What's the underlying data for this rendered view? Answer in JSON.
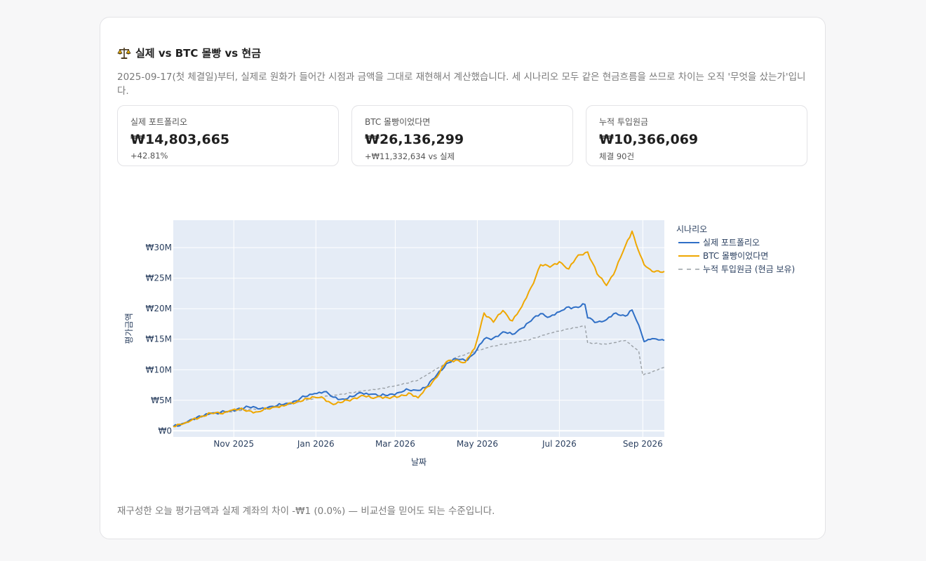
{
  "header": {
    "title": "실제 vs BTC 몰빵 vs 현금",
    "icon": "balance-scale-icon",
    "description": "2025-09-17(첫 체결일)부터, 실제로 원화가 들어간 시점과 금액을 그대로 재현해서 계산했습니다. 세 시나리오 모두 같은 현금흐름을 쓰므로 차이는 오직 '무엇을 샀는가'입니다."
  },
  "metrics": [
    {
      "label": "실제 포트폴리오",
      "value": "₩14,803,665",
      "sub": "+42.81%"
    },
    {
      "label": "BTC 몰빵이었다면",
      "value": "₩26,136,299",
      "sub": "+₩11,332,634 vs 실제"
    },
    {
      "label": "누적 투입원금",
      "value": "₩10,366,069",
      "sub": "체결 90건"
    }
  ],
  "footnote": "재구성한 오늘 평가금액과 실제 계좌의 차이 -₩1 (0.0%) — 비교선을 믿어도 되는 수준입니다.",
  "chart_data": {
    "type": "line",
    "xlabel": "날짜",
    "ylabel": "평가금액",
    "x_range": [
      "2025-09-17",
      "2026-09-17"
    ],
    "x_ticks": [
      {
        "date": "2025-11-01",
        "label": "Nov 2025"
      },
      {
        "date": "2026-01-01",
        "label": "Jan 2026"
      },
      {
        "date": "2026-03-01",
        "label": "Mar 2026"
      },
      {
        "date": "2026-05-01",
        "label": "May 2026"
      },
      {
        "date": "2026-07-01",
        "label": "Jul 2026"
      },
      {
        "date": "2026-09-01",
        "label": "Sep 2026"
      }
    ],
    "y_ticks": [
      {
        "value": 0,
        "label": "₩0"
      },
      {
        "value": 5000000,
        "label": "₩5M"
      },
      {
        "value": 10000000,
        "label": "₩10M"
      },
      {
        "value": 15000000,
        "label": "₩15M"
      },
      {
        "value": 20000000,
        "label": "₩20M"
      },
      {
        "value": 25000000,
        "label": "₩25M"
      },
      {
        "value": 30000000,
        "label": "₩30M"
      }
    ],
    "ylim": [
      -1000000,
      34500000
    ],
    "legend": {
      "title": "시나리오",
      "placement": "right"
    },
    "plot_bg": "#e5ecf6",
    "grid": true,
    "series": [
      {
        "name": "실제 포트폴리오",
        "color": "#2f6fc6",
        "dash": "solid",
        "points": [
          [
            "2025-09-17",
            700000
          ],
          [
            "2025-09-25",
            1200000
          ],
          [
            "2025-10-01",
            1900000
          ],
          [
            "2025-10-08",
            2300000
          ],
          [
            "2025-10-15",
            2900000
          ],
          [
            "2025-10-22",
            3000000
          ],
          [
            "2025-10-29",
            3200000
          ],
          [
            "2025-11-05",
            3700000
          ],
          [
            "2025-11-12",
            3900000
          ],
          [
            "2025-11-19",
            3600000
          ],
          [
            "2025-11-26",
            3800000
          ],
          [
            "2025-12-03",
            4100000
          ],
          [
            "2025-12-10",
            4500000
          ],
          [
            "2025-12-17",
            4900000
          ],
          [
            "2025-12-24",
            5600000
          ],
          [
            "2025-12-31",
            6100000
          ],
          [
            "2026-01-07",
            6400000
          ],
          [
            "2026-01-14",
            5500000
          ],
          [
            "2026-01-21",
            5200000
          ],
          [
            "2026-01-28",
            5600000
          ],
          [
            "2026-02-04",
            6200000
          ],
          [
            "2026-02-11",
            6000000
          ],
          [
            "2026-02-18",
            5700000
          ],
          [
            "2026-02-25",
            6000000
          ],
          [
            "2026-03-04",
            6300000
          ],
          [
            "2026-03-11",
            6700000
          ],
          [
            "2026-03-18",
            6600000
          ],
          [
            "2026-03-25",
            7300000
          ],
          [
            "2026-04-01",
            9200000
          ],
          [
            "2026-04-08",
            11000000
          ],
          [
            "2026-04-15",
            11800000
          ],
          [
            "2026-04-22",
            11500000
          ],
          [
            "2026-04-29",
            12700000
          ],
          [
            "2026-05-06",
            15000000
          ],
          [
            "2026-05-13",
            15200000
          ],
          [
            "2026-05-20",
            16200000
          ],
          [
            "2026-05-27",
            15800000
          ],
          [
            "2026-06-03",
            16800000
          ],
          [
            "2026-06-10",
            18000000
          ],
          [
            "2026-06-17",
            19200000
          ],
          [
            "2026-06-24",
            18700000
          ],
          [
            "2026-07-01",
            19500000
          ],
          [
            "2026-07-08",
            20300000
          ],
          [
            "2026-07-15",
            20200000
          ],
          [
            "2026-07-20",
            20700000
          ],
          [
            "2026-07-22",
            18500000
          ],
          [
            "2026-07-29",
            17800000
          ],
          [
            "2026-08-05",
            18200000
          ],
          [
            "2026-08-12",
            19300000
          ],
          [
            "2026-08-19",
            18800000
          ],
          [
            "2026-08-24",
            19800000
          ],
          [
            "2026-08-29",
            17300000
          ],
          [
            "2026-09-02",
            14600000
          ],
          [
            "2026-09-08",
            15100000
          ],
          [
            "2026-09-17",
            14800000
          ]
        ]
      },
      {
        "name": "BTC 몰빵이었다면",
        "color": "#efa700",
        "dash": "solid",
        "points": [
          [
            "2025-09-17",
            700000
          ],
          [
            "2025-09-25",
            1200000
          ],
          [
            "2025-10-01",
            1800000
          ],
          [
            "2025-10-08",
            2400000
          ],
          [
            "2025-10-15",
            2900000
          ],
          [
            "2025-10-22",
            2800000
          ],
          [
            "2025-10-29",
            3300000
          ],
          [
            "2025-11-05",
            3500000
          ],
          [
            "2025-11-12",
            3300000
          ],
          [
            "2025-11-19",
            3100000
          ],
          [
            "2025-11-26",
            3600000
          ],
          [
            "2025-12-03",
            3900000
          ],
          [
            "2025-12-10",
            4200000
          ],
          [
            "2025-12-17",
            4600000
          ],
          [
            "2025-12-24",
            5300000
          ],
          [
            "2025-12-31",
            5500000
          ],
          [
            "2026-01-07",
            5300000
          ],
          [
            "2026-01-14",
            4300000
          ],
          [
            "2026-01-21",
            4700000
          ],
          [
            "2026-01-28",
            5200000
          ],
          [
            "2026-02-04",
            5800000
          ],
          [
            "2026-02-11",
            5400000
          ],
          [
            "2026-02-18",
            5600000
          ],
          [
            "2026-02-25",
            5300000
          ],
          [
            "2026-03-04",
            5600000
          ],
          [
            "2026-03-11",
            6200000
          ],
          [
            "2026-03-18",
            5400000
          ],
          [
            "2026-03-25",
            7200000
          ],
          [
            "2026-04-01",
            8800000
          ],
          [
            "2026-04-08",
            11300000
          ],
          [
            "2026-04-15",
            11600000
          ],
          [
            "2026-04-22",
            11200000
          ],
          [
            "2026-04-29",
            13500000
          ],
          [
            "2026-05-06",
            19300000
          ],
          [
            "2026-05-13",
            17800000
          ],
          [
            "2026-05-20",
            19700000
          ],
          [
            "2026-05-27",
            18000000
          ],
          [
            "2026-06-03",
            20300000
          ],
          [
            "2026-06-10",
            23500000
          ],
          [
            "2026-06-17",
            27200000
          ],
          [
            "2026-06-24",
            26800000
          ],
          [
            "2026-07-01",
            27700000
          ],
          [
            "2026-07-08",
            26500000
          ],
          [
            "2026-07-15",
            28800000
          ],
          [
            "2026-07-22",
            29300000
          ],
          [
            "2026-07-29",
            25700000
          ],
          [
            "2026-08-05",
            23800000
          ],
          [
            "2026-08-12",
            26500000
          ],
          [
            "2026-08-19",
            30300000
          ],
          [
            "2026-08-24",
            32700000
          ],
          [
            "2026-08-27",
            30600000
          ],
          [
            "2026-09-02",
            27200000
          ],
          [
            "2026-09-08",
            26100000
          ],
          [
            "2026-09-17",
            26100000
          ]
        ]
      },
      {
        "name": "누적 투입원금 (현금 보유)",
        "color": "#9aa0a6",
        "dash": "dashed",
        "points": [
          [
            "2025-09-17",
            700000
          ],
          [
            "2025-10-01",
            1800000
          ],
          [
            "2025-10-15",
            2800000
          ],
          [
            "2025-10-29",
            3100000
          ],
          [
            "2025-11-12",
            3500000
          ],
          [
            "2025-11-26",
            3700000
          ],
          [
            "2025-12-10",
            4300000
          ],
          [
            "2025-12-24",
            5000000
          ],
          [
            "2026-01-07",
            5600000
          ],
          [
            "2026-01-21",
            6000000
          ],
          [
            "2026-02-04",
            6500000
          ],
          [
            "2026-02-18",
            6900000
          ],
          [
            "2026-03-04",
            7500000
          ],
          [
            "2026-03-18",
            8300000
          ],
          [
            "2026-04-01",
            10200000
          ],
          [
            "2026-04-15",
            12000000
          ],
          [
            "2026-04-29",
            13000000
          ],
          [
            "2026-05-13",
            13900000
          ],
          [
            "2026-05-27",
            14400000
          ],
          [
            "2026-06-10",
            15000000
          ],
          [
            "2026-06-24",
            16000000
          ],
          [
            "2026-07-08",
            16700000
          ],
          [
            "2026-07-20",
            17200000
          ],
          [
            "2026-07-22",
            14400000
          ],
          [
            "2026-08-05",
            14200000
          ],
          [
            "2026-08-19",
            14800000
          ],
          [
            "2026-08-29",
            13000000
          ],
          [
            "2026-09-01",
            9100000
          ],
          [
            "2026-09-17",
            10400000
          ]
        ]
      }
    ]
  }
}
